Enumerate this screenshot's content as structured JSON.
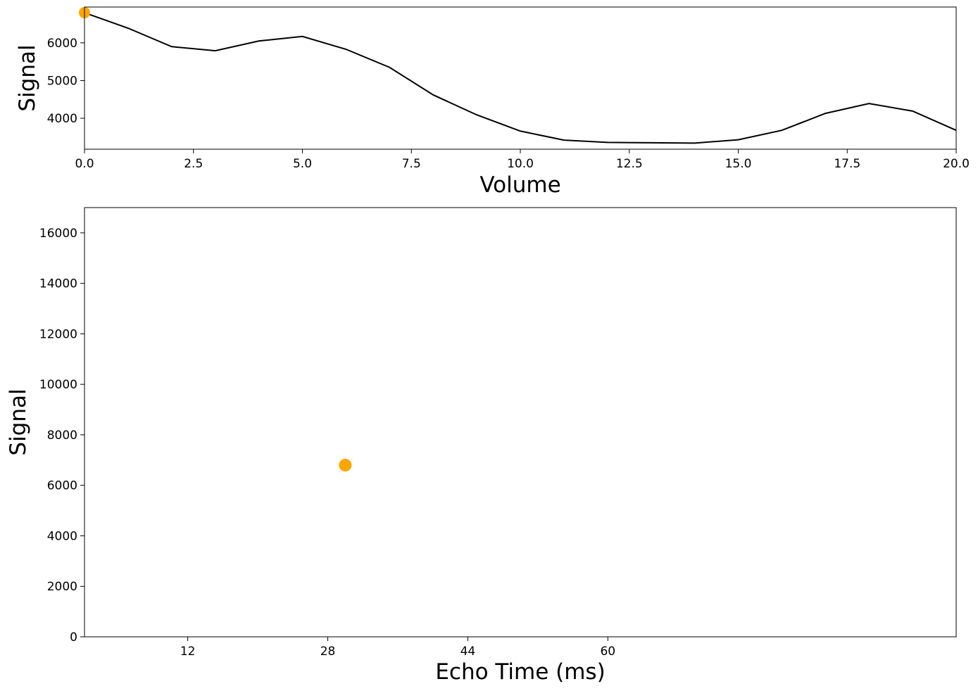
{
  "chart_data": [
    {
      "type": "line",
      "xlabel": "Volume",
      "ylabel": "Signal",
      "x": [
        0,
        1,
        2,
        3,
        4,
        5,
        6,
        7,
        8,
        9,
        10,
        11,
        12,
        13,
        14,
        15,
        16,
        17,
        18,
        19,
        20
      ],
      "values": [
        6800,
        6390,
        5900,
        5790,
        6050,
        6170,
        5830,
        5350,
        4620,
        4090,
        3660,
        3420,
        3360,
        3350,
        3340,
        3430,
        3680,
        4130,
        4390,
        4190,
        3680
      ],
      "color": "#000000",
      "highlight": {
        "x": 0,
        "y": 6800,
        "color": "#ffa500"
      },
      "xlim": [
        0,
        20
      ],
      "ylim": [
        3180,
        6950
      ],
      "xticks": [
        {
          "value": 0,
          "label": "0.0"
        },
        2.5,
        {
          "value": 5,
          "label": "5.0"
        },
        7.5,
        {
          "value": 10,
          "label": "10.0"
        },
        12.5,
        {
          "value": 15,
          "label": "15.0"
        },
        17.5,
        {
          "value": 20,
          "label": "20.0"
        }
      ],
      "yticks": [
        4000,
        5000,
        6000
      ]
    },
    {
      "type": "scatter",
      "xlabel": "Echo Time (ms)",
      "ylabel": "Signal",
      "x": [
        30
      ],
      "values": [
        6800
      ],
      "color": "#ffa500",
      "xlim": [
        0.2,
        99.8
      ],
      "ylim": [
        0,
        17000
      ],
      "xticks": [
        12,
        28,
        44,
        60
      ],
      "yticks": [
        0,
        2000,
        4000,
        6000,
        8000,
        10000,
        12000,
        14000,
        16000
      ]
    }
  ]
}
